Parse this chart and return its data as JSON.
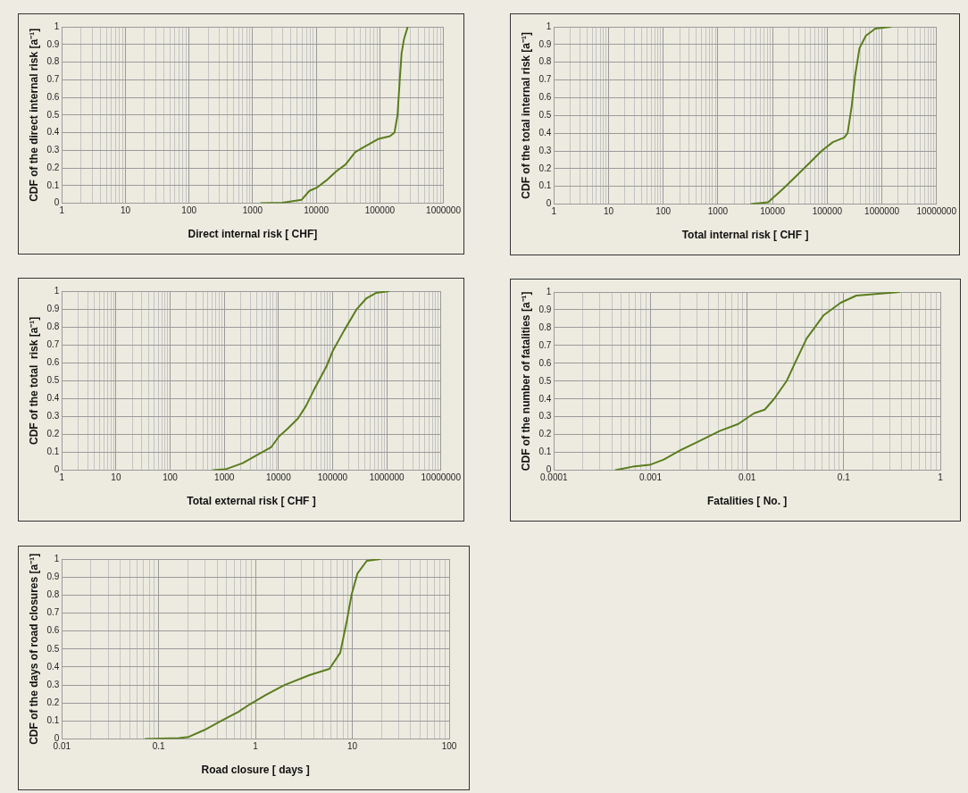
{
  "chart_data": [
    {
      "type": "line",
      "xlabel": "Direct internal risk [ CHF]",
      "ylabel": "CDF of the direct internal risk [a⁻¹]",
      "log": "x",
      "grid": true,
      "color": "#5a7d1e",
      "xlim": [
        1,
        1000000
      ],
      "xticks": [
        1,
        10,
        100,
        1000,
        10000,
        100000,
        1000000
      ],
      "ylim": [
        0,
        1
      ],
      "yticks": [
        0,
        0.1,
        0.2,
        0.3,
        0.4,
        0.5,
        0.6,
        0.7,
        0.8,
        0.9,
        1
      ],
      "x": [
        1320,
        2950,
        5900,
        7800,
        10400,
        14500,
        20500,
        29000,
        41000,
        54000,
        96000,
        144000,
        170000,
        190000,
        206000,
        220000,
        240000,
        275000
      ],
      "values": [
        0,
        0.003,
        0.02,
        0.07,
        0.09,
        0.13,
        0.18,
        0.22,
        0.29,
        0.315,
        0.365,
        0.38,
        0.4,
        0.5,
        0.7,
        0.85,
        0.93,
        1
      ]
    },
    {
      "type": "line",
      "xlabel": "Total internal risk [ CHF ]",
      "ylabel": "CDF of the total internal risk [a⁻¹]",
      "log": "x",
      "grid": true,
      "color": "#5a7d1e",
      "xlim": [
        1,
        10000000
      ],
      "xticks": [
        1,
        10,
        100,
        1000,
        10000,
        100000,
        1000000,
        10000000
      ],
      "ylim": [
        0,
        1
      ],
      "yticks": [
        0,
        0.1,
        0.2,
        0.3,
        0.4,
        0.5,
        0.6,
        0.7,
        0.8,
        0.9,
        1
      ],
      "x": [
        3960,
        8300,
        16000,
        27500,
        46500,
        79000,
        127000,
        204000,
        236000,
        280000,
        322000,
        390000,
        510000,
        760000,
        1480000
      ],
      "values": [
        0,
        0.01,
        0.09,
        0.16,
        0.23,
        0.3,
        0.35,
        0.375,
        0.4,
        0.55,
        0.72,
        0.88,
        0.95,
        0.99,
        1
      ]
    },
    {
      "type": "line",
      "xlabel": "Total external risk [ CHF ]",
      "ylabel": "CDF of the total  risk [a⁻¹]",
      "log": "x",
      "grid": true,
      "color": "#5a7d1e",
      "xlim": [
        1,
        10000000
      ],
      "xticks": [
        1,
        10,
        100,
        1000,
        10000,
        100000,
        1000000,
        10000000
      ],
      "ylim": [
        0,
        1
      ],
      "yticks": [
        0,
        0.1,
        0.2,
        0.3,
        0.4,
        0.5,
        0.6,
        0.7,
        0.8,
        0.9,
        1
      ],
      "x": [
        610,
        1040,
        2180,
        3740,
        7400,
        10300,
        14500,
        23000,
        32400,
        45400,
        77000,
        102000,
        163000,
        280000,
        420000,
        630000,
        1120000
      ],
      "values": [
        0,
        0.005,
        0.04,
        0.08,
        0.13,
        0.19,
        0.23,
        0.29,
        0.36,
        0.45,
        0.58,
        0.67,
        0.78,
        0.9,
        0.96,
        0.99,
        1
      ]
    },
    {
      "type": "line",
      "xlabel": "Fatalities [ No. ]",
      "ylabel": "CDF of the number of fatalities [a⁻¹]",
      "log": "x",
      "grid": true,
      "color": "#5a7d1e",
      "xlim": [
        0.0001,
        1
      ],
      "xticks": [
        0.0001,
        0.001,
        0.01,
        0.1,
        1
      ],
      "ylim": [
        0,
        1
      ],
      "yticks": [
        0,
        0.1,
        0.2,
        0.3,
        0.4,
        0.5,
        0.6,
        0.7,
        0.8,
        0.9,
        1
      ],
      "x": [
        0.00043,
        0.00065,
        0.00098,
        0.00137,
        0.002,
        0.0031,
        0.0052,
        0.0081,
        0.0118,
        0.0152,
        0.019,
        0.0256,
        0.0318,
        0.0414,
        0.05,
        0.062,
        0.093,
        0.135,
        0.38
      ],
      "values": [
        0,
        0.02,
        0.03,
        0.06,
        0.11,
        0.16,
        0.22,
        0.26,
        0.32,
        0.34,
        0.4,
        0.5,
        0.61,
        0.74,
        0.8,
        0.87,
        0.94,
        0.98,
        1
      ]
    },
    {
      "type": "line",
      "xlabel": "Road closure [ days ]",
      "ylabel": "CDF of the days of road closures [a⁻¹]",
      "log": "x",
      "grid": true,
      "color": "#5a7d1e",
      "xlim": [
        0.01,
        100
      ],
      "xticks": [
        0.01,
        0.1,
        1,
        10,
        100
      ],
      "ylim": [
        0,
        1
      ],
      "yticks": [
        0,
        0.1,
        0.2,
        0.3,
        0.4,
        0.5,
        0.6,
        0.7,
        0.8,
        0.9,
        1
      ],
      "x": [
        0.072,
        0.162,
        0.204,
        0.295,
        0.457,
        0.66,
        0.885,
        1.28,
        1.99,
        3.6,
        5.8,
        7.5,
        8.8,
        9.8,
        11.3,
        14.1,
        19.6
      ],
      "values": [
        0,
        0.005,
        0.012,
        0.05,
        0.105,
        0.15,
        0.195,
        0.245,
        0.3,
        0.355,
        0.39,
        0.48,
        0.66,
        0.8,
        0.92,
        0.99,
        1
      ]
    }
  ]
}
